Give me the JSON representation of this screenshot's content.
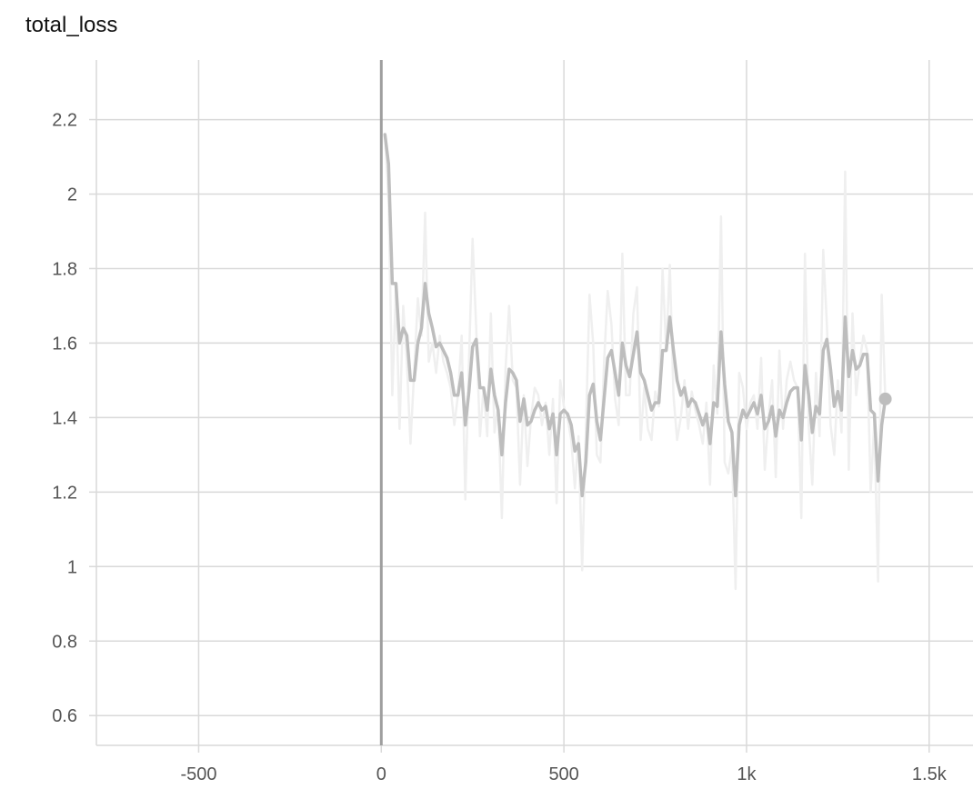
{
  "chart_data": {
    "type": "line",
    "title": "total_loss",
    "xlabel": "",
    "ylabel": "",
    "xlim": [
      -780,
      1620
    ],
    "ylim": [
      0.52,
      2.36
    ],
    "x_ticks": [
      -500,
      0,
      500,
      1000,
      1500
    ],
    "x_tick_labels": [
      "-500",
      "0",
      "500",
      "1k",
      "1.5k"
    ],
    "y_ticks": [
      0.6,
      0.8,
      1,
      1.2,
      1.4,
      1.6,
      1.8,
      2,
      2.2
    ],
    "y_tick_labels": [
      "0.6",
      "0.8",
      "1",
      "1.2",
      "1.4",
      "1.6",
      "1.8",
      "2",
      "2.2"
    ],
    "grid": true,
    "colors": {
      "smoothed": "#bdbdbd",
      "raw": "#efefef",
      "grid": "#d9d9d9",
      "zero_line": "#9e9e9e",
      "marker": "#bdbdbd"
    },
    "series": [
      {
        "x": [
          10,
          20,
          30,
          40,
          50,
          60,
          70,
          80,
          90,
          100,
          110,
          120,
          130,
          140,
          150,
          160,
          170,
          180,
          190,
          200,
          210,
          220,
          230,
          240,
          250,
          260,
          270,
          280,
          290,
          300,
          310,
          320,
          330,
          340,
          350,
          360,
          370,
          380,
          390,
          400,
          410,
          420,
          430,
          440,
          450,
          460,
          470,
          480,
          490,
          500,
          510,
          520,
          530,
          540,
          550,
          560,
          570,
          580,
          590,
          600,
          610,
          620,
          630,
          640,
          650,
          660,
          670,
          680,
          690,
          700,
          710,
          720,
          730,
          740,
          750,
          760,
          770,
          780,
          790,
          800,
          810,
          820,
          830,
          840,
          850,
          860,
          870,
          880,
          890,
          900,
          910,
          920,
          930,
          940,
          950,
          960,
          970,
          980,
          990,
          1000,
          1010,
          1020,
          1030,
          1040,
          1050,
          1060,
          1070,
          1080,
          1090,
          1100,
          1110,
          1120,
          1130,
          1140,
          1150,
          1160,
          1170,
          1180,
          1190,
          1200,
          1210,
          1220,
          1230,
          1240,
          1250,
          1260,
          1270,
          1280,
          1290,
          1300,
          1310,
          1320,
          1330,
          1340,
          1350,
          1360,
          1370,
          1380
        ],
        "values": [
          2.16,
          2.08,
          1.76,
          1.76,
          1.6,
          1.64,
          1.62,
          1.5,
          1.5,
          1.6,
          1.64,
          1.76,
          1.68,
          1.64,
          1.59,
          1.6,
          1.58,
          1.56,
          1.52,
          1.46,
          1.46,
          1.52,
          1.38,
          1.47,
          1.59,
          1.61,
          1.48,
          1.48,
          1.42,
          1.53,
          1.46,
          1.42,
          1.3,
          1.44,
          1.53,
          1.52,
          1.5,
          1.39,
          1.45,
          1.38,
          1.39,
          1.42,
          1.44,
          1.42,
          1.43,
          1.37,
          1.41,
          1.3,
          1.41,
          1.42,
          1.41,
          1.38,
          1.31,
          1.33,
          1.19,
          1.28,
          1.46,
          1.49,
          1.39,
          1.34,
          1.45,
          1.56,
          1.58,
          1.52,
          1.46,
          1.6,
          1.54,
          1.51,
          1.57,
          1.63,
          1.52,
          1.5,
          1.46,
          1.42,
          1.44,
          1.44,
          1.58,
          1.58,
          1.67,
          1.58,
          1.5,
          1.46,
          1.48,
          1.43,
          1.45,
          1.44,
          1.41,
          1.38,
          1.41,
          1.33,
          1.44,
          1.43,
          1.63,
          1.49,
          1.39,
          1.36,
          1.19,
          1.38,
          1.42,
          1.4,
          1.42,
          1.44,
          1.41,
          1.46,
          1.37,
          1.39,
          1.43,
          1.35,
          1.42,
          1.4,
          1.44,
          1.47,
          1.48,
          1.48,
          1.34,
          1.54,
          1.46,
          1.36,
          1.43,
          1.41,
          1.58,
          1.61,
          1.53,
          1.43,
          1.47,
          1.42,
          1.67,
          1.51,
          1.58,
          1.53,
          1.54,
          1.57,
          1.57,
          1.42,
          1.41,
          1.23,
          1.38,
          1.45
        ]
      },
      {
        "x": [
          10,
          20,
          30,
          40,
          50,
          60,
          70,
          80,
          90,
          100,
          110,
          120,
          130,
          140,
          150,
          160,
          170,
          180,
          190,
          200,
          210,
          220,
          230,
          240,
          250,
          260,
          270,
          280,
          290,
          300,
          310,
          320,
          330,
          340,
          350,
          360,
          370,
          380,
          390,
          400,
          410,
          420,
          430,
          440,
          450,
          460,
          470,
          480,
          490,
          500,
          510,
          520,
          530,
          540,
          550,
          560,
          570,
          580,
          590,
          600,
          610,
          620,
          630,
          640,
          650,
          660,
          670,
          680,
          690,
          700,
          710,
          720,
          730,
          740,
          750,
          760,
          770,
          780,
          790,
          800,
          810,
          820,
          830,
          840,
          850,
          860,
          870,
          880,
          890,
          900,
          910,
          920,
          930,
          940,
          950,
          960,
          970,
          980,
          990,
          1000,
          1010,
          1020,
          1030,
          1040,
          1050,
          1060,
          1070,
          1080,
          1090,
          1100,
          1110,
          1120,
          1130,
          1140,
          1150,
          1160,
          1170,
          1180,
          1190,
          1200,
          1210,
          1220,
          1230,
          1240,
          1250,
          1260,
          1270,
          1280,
          1290,
          1300,
          1310,
          1320,
          1330,
          1340,
          1350,
          1360,
          1370,
          1380
        ],
        "values": [
          2.16,
          1.98,
          1.46,
          1.75,
          1.37,
          1.7,
          1.55,
          1.33,
          1.52,
          1.72,
          1.62,
          1.95,
          1.55,
          1.6,
          1.52,
          1.62,
          1.55,
          1.52,
          1.48,
          1.38,
          1.46,
          1.62,
          1.18,
          1.55,
          1.88,
          1.64,
          1.35,
          1.48,
          1.35,
          1.68,
          1.36,
          1.43,
          1.13,
          1.53,
          1.7,
          1.5,
          1.48,
          1.22,
          1.46,
          1.27,
          1.4,
          1.48,
          1.46,
          1.38,
          1.44,
          1.3,
          1.45,
          1.17,
          1.5,
          1.43,
          1.4,
          1.34,
          1.21,
          1.35,
          0.99,
          1.36,
          1.73,
          1.6,
          1.3,
          1.28,
          1.55,
          1.74,
          1.65,
          1.45,
          1.38,
          1.84,
          1.46,
          1.46,
          1.68,
          1.75,
          1.34,
          1.48,
          1.37,
          1.34,
          1.47,
          1.43,
          1.8,
          1.58,
          1.81,
          1.46,
          1.34,
          1.4,
          1.5,
          1.37,
          1.47,
          1.42,
          1.38,
          1.33,
          1.44,
          1.22,
          1.54,
          1.41,
          1.94,
          1.28,
          1.25,
          1.32,
          0.94,
          1.52,
          1.48,
          1.37,
          1.44,
          1.46,
          1.37,
          1.56,
          1.26,
          1.4,
          1.5,
          1.24,
          1.58,
          1.37,
          1.5,
          1.55,
          1.5,
          1.48,
          1.13,
          1.84,
          1.38,
          1.22,
          1.52,
          1.35,
          1.85,
          1.65,
          1.38,
          1.3,
          1.5,
          1.36,
          2.06,
          1.26,
          1.68,
          1.46,
          1.55,
          1.62,
          1.58,
          1.2,
          1.39,
          0.96,
          1.73,
          1.45
        ]
      }
    ],
    "last_point": {
      "x": 1380,
      "y": 1.45
    },
    "zero_line_x": 0
  }
}
